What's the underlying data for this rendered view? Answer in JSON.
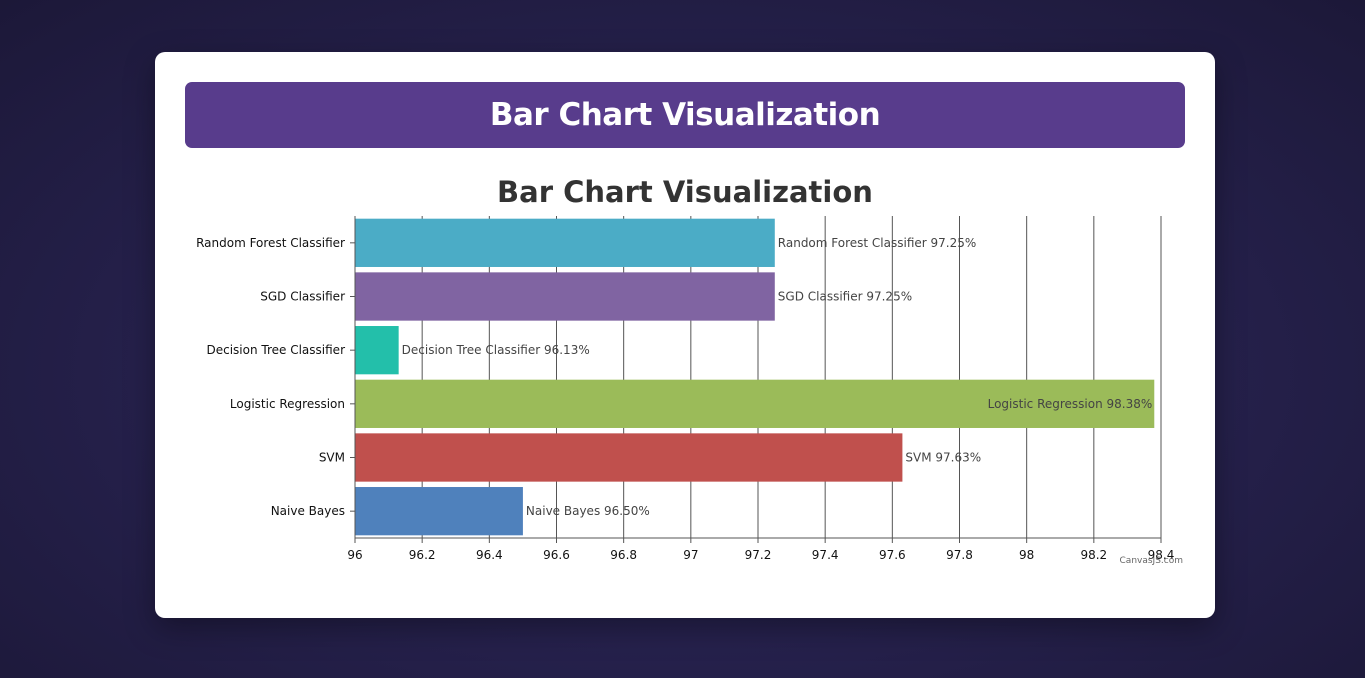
{
  "page": {
    "heading": "Bar Chart Visualization"
  },
  "chart_data": {
    "type": "bar",
    "orientation": "horizontal",
    "title": "Bar Chart Visualization",
    "xlabel": "",
    "ylabel": "",
    "categories": [
      "Random Forest Classifier",
      "SGD Classifier",
      "Decision Tree Classifier",
      "Logistic Regression",
      "SVM",
      "Naive Bayes"
    ],
    "values": [
      97.25,
      97.25,
      96.13,
      98.38,
      97.63,
      96.5
    ],
    "data_labels": [
      "Random Forest Classifier 97.25%",
      "SGD Classifier 97.25%",
      "Decision Tree Classifier 96.13%",
      "Logistic Regression 98.38%",
      "SVM 97.63%",
      "Naive Bayes 96.50%"
    ],
    "colors": [
      "#4bacc6",
      "#8064a2",
      "#23bfaa",
      "#9bbb59",
      "#c0504d",
      "#4f81bc"
    ],
    "xlim": [
      96,
      98.4
    ],
    "ticks": [
      "96",
      "96.2",
      "96.4",
      "96.6",
      "96.8",
      "97",
      "97.2",
      "97.4",
      "97.6",
      "97.8",
      "98",
      "98.2",
      "98.4"
    ],
    "grid": true,
    "legend": "none",
    "credit": "CanvasJS.com"
  }
}
